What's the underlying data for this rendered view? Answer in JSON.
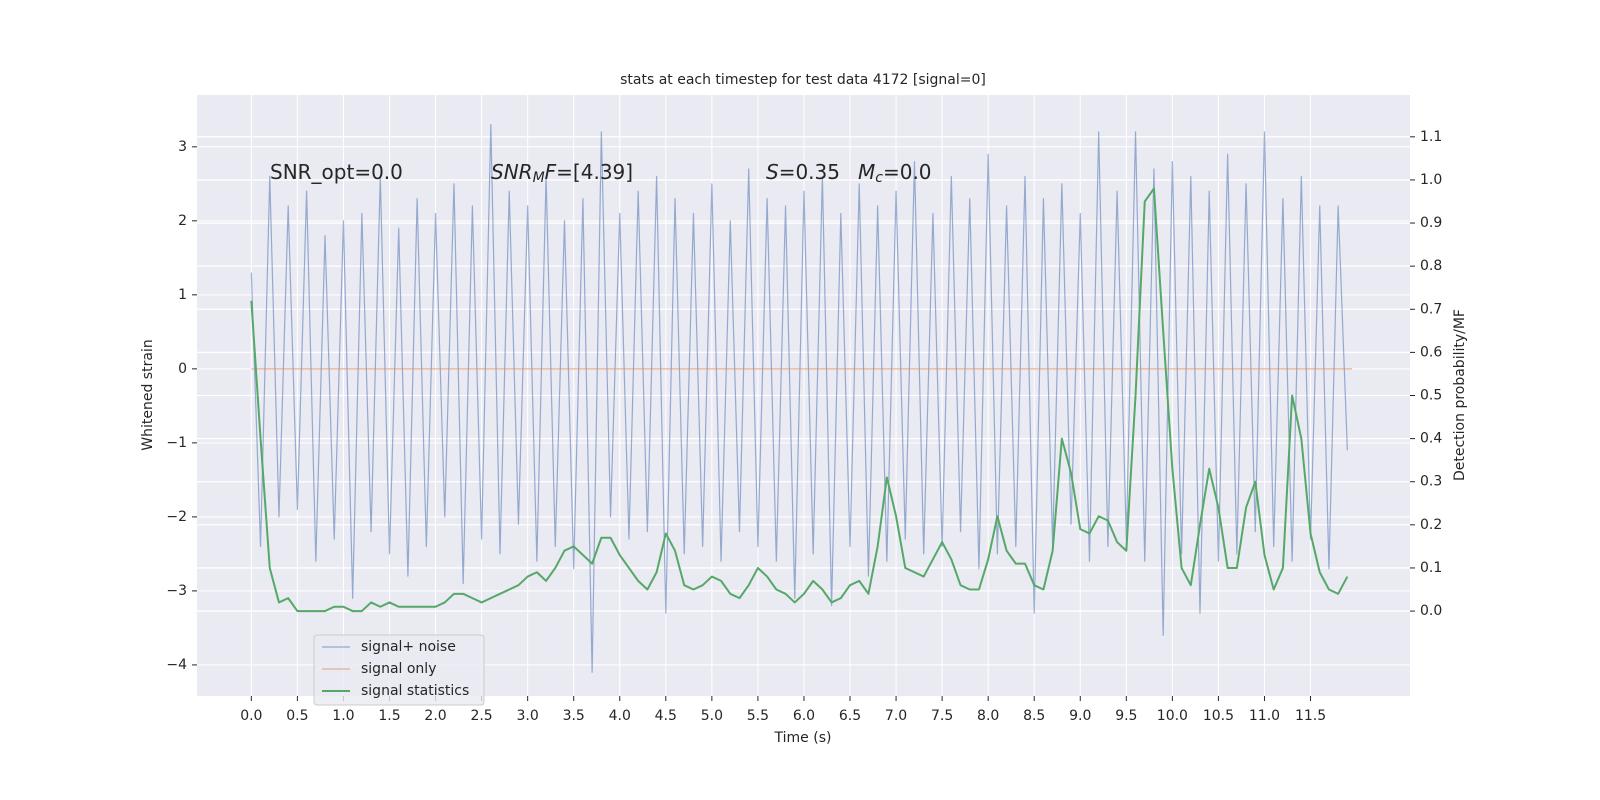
{
  "chart_data": {
    "type": "line",
    "title": "stats at each timestep for test data 4172 [signal=0]",
    "xlabel": "Time (s)",
    "ylabel": "Whitened strain",
    "y2label": "Detection probability/MF",
    "xlim": [
      -0.59,
      12.58
    ],
    "ylim": [
      -4.42,
      3.7
    ],
    "y2lim": [
      -0.197,
      1.197
    ],
    "xticks": [
      {
        "value": 0,
        "label": "0.0"
      },
      0.5,
      {
        "value": 1,
        "label": "1.0"
      },
      1.5,
      {
        "value": 2,
        "label": "2.0"
      },
      2.5,
      {
        "value": 3,
        "label": "3.0"
      },
      3.5,
      {
        "value": 4,
        "label": "4.0"
      },
      4.5,
      {
        "value": 5,
        "label": "5.0"
      },
      5.5,
      {
        "value": 6,
        "label": "6.0"
      },
      6.5,
      {
        "value": 7,
        "label": "7.0"
      },
      7.5,
      {
        "value": 8,
        "label": "8.0"
      },
      8.5,
      {
        "value": 9,
        "label": "9.0"
      },
      9.5,
      {
        "value": 10,
        "label": "10.0"
      },
      10.5,
      {
        "value": 11,
        "label": "11.0"
      },
      11.5
    ],
    "yticks": [
      {
        "value": -4,
        "label": "−4"
      },
      {
        "value": -3,
        "label": "−3"
      },
      {
        "value": -2,
        "label": "−2"
      },
      {
        "value": -1,
        "label": "−1"
      },
      0,
      1,
      2,
      3
    ],
    "y2ticks": [
      {
        "value": 0,
        "label": "0.0"
      },
      0.1,
      0.2,
      0.3,
      0.4,
      0.5,
      0.6,
      0.7,
      0.8,
      0.9,
      {
        "value": 1,
        "label": "1.0"
      },
      1.1
    ],
    "grid": true,
    "legend": "lower left",
    "annotations": [
      {
        "parts": [
          {
            "t": "SNR_opt=0.0"
          }
        ]
      },
      {
        "parts": [
          {
            "t": "SNR",
            "italic": true
          },
          {
            "t": "M",
            "italic": true,
            "sub": true
          },
          {
            "t": "F",
            "italic": true
          },
          {
            "t": "=[4.39]"
          }
        ]
      },
      {
        "parts": [
          {
            "t": "S",
            "italic": true
          },
          {
            "t": "=0.35"
          }
        ]
      },
      {
        "parts": [
          {
            "t": "M",
            "italic": true
          },
          {
            "t": "c",
            "italic": true,
            "sub": true
          },
          {
            "t": "=0.0"
          }
        ]
      }
    ],
    "x": [
      0.0,
      0.1,
      0.2,
      0.3,
      0.4,
      0.5,
      0.6,
      0.7,
      0.8,
      0.9,
      1.0,
      1.1,
      1.2,
      1.3,
      1.4,
      1.5,
      1.6,
      1.7,
      1.8,
      1.9,
      2.0,
      2.1,
      2.2,
      2.3,
      2.4,
      2.5,
      2.6,
      2.7,
      2.8,
      2.9,
      3.0,
      3.1,
      3.2,
      3.3,
      3.4,
      3.5,
      3.6,
      3.7,
      3.8,
      3.9,
      4.0,
      4.1,
      4.2,
      4.3,
      4.4,
      4.5,
      4.6,
      4.7,
      4.8,
      4.9,
      5.0,
      5.1,
      5.2,
      5.3,
      5.4,
      5.5,
      5.6,
      5.7,
      5.8,
      5.9,
      6.0,
      6.1,
      6.2,
      6.3,
      6.4,
      6.5,
      6.6,
      6.7,
      6.8,
      6.9,
      7.0,
      7.1,
      7.2,
      7.3,
      7.4,
      7.5,
      7.6,
      7.7,
      7.8,
      7.9,
      8.0,
      8.1,
      8.2,
      8.3,
      8.4,
      8.5,
      8.6,
      8.7,
      8.8,
      8.9,
      9.0,
      9.1,
      9.2,
      9.3,
      9.4,
      9.5,
      9.6,
      9.7,
      9.8,
      9.9,
      10.0,
      10.1,
      10.2,
      10.3,
      10.4,
      10.5,
      10.6,
      10.7,
      10.8,
      10.9,
      11.0,
      11.1,
      11.2,
      11.3,
      11.4,
      11.5,
      11.6,
      11.7,
      11.8,
      11.9
    ],
    "series": [
      {
        "name": "signal+ noise",
        "color": "#4c72b0",
        "values": [
          1.3,
          -2.4,
          2.6,
          -2.0,
          2.2,
          -1.9,
          2.4,
          -2.6,
          1.8,
          -2.3,
          2.0,
          -3.1,
          2.1,
          -2.2,
          2.6,
          -2.5,
          1.9,
          -2.8,
          2.3,
          -2.4,
          2.1,
          -2.0,
          2.5,
          -2.9,
          2.2,
          -2.3,
          3.3,
          -2.5,
          2.4,
          -2.1,
          2.2,
          -2.6,
          2.6,
          -2.4,
          2.0,
          -2.7,
          2.3,
          -4.1,
          3.2,
          -2.0,
          2.1,
          -2.3,
          2.4,
          -2.2,
          2.6,
          -3.3,
          2.3,
          -2.5,
          2.1,
          -2.4,
          2.5,
          -2.6,
          2.0,
          -2.2,
          2.7,
          -2.4,
          2.3,
          -2.6,
          2.2,
          -3.1,
          2.4,
          -2.5,
          2.6,
          -3.2,
          2.1,
          -2.4,
          2.5,
          -2.8,
          2.2,
          -2.6,
          2.4,
          -2.3,
          2.8,
          -2.5,
          2.1,
          -2.4,
          2.6,
          -2.2,
          2.3,
          -2.7,
          2.9,
          -2.5,
          2.2,
          -2.4,
          2.6,
          -3.3,
          2.3,
          -2.4,
          2.5,
          -2.1,
          2.1,
          -2.6,
          3.2,
          -2.4,
          2.4,
          -2.3,
          3.2,
          -2.6,
          2.7,
          -3.6,
          2.8,
          -2.5,
          2.6,
          -3.3,
          2.4,
          -2.6,
          2.9,
          -2.5,
          2.5,
          -2.2,
          3.2,
          -2.4,
          2.3,
          -2.6,
          2.6,
          -2.3,
          2.2,
          -2.7,
          2.2,
          -1.1
        ]
      },
      {
        "name": "signal only",
        "color": "#dd8452",
        "x": [
          0.0,
          11.95
        ],
        "values": [
          0,
          0
        ]
      },
      {
        "name": "signal statistics",
        "color": "#55a868",
        "axis": "y2",
        "values": [
          0.72,
          0.4,
          0.1,
          0.02,
          0.03,
          0.0,
          0.0,
          0.0,
          0.0,
          0.01,
          0.01,
          0.0,
          0.0,
          0.02,
          0.01,
          0.02,
          0.01,
          0.01,
          0.01,
          0.01,
          0.01,
          0.02,
          0.04,
          0.04,
          0.03,
          0.02,
          0.03,
          0.04,
          0.05,
          0.06,
          0.08,
          0.09,
          0.07,
          0.1,
          0.14,
          0.15,
          0.13,
          0.11,
          0.17,
          0.17,
          0.13,
          0.1,
          0.07,
          0.05,
          0.09,
          0.18,
          0.14,
          0.06,
          0.05,
          0.06,
          0.08,
          0.07,
          0.04,
          0.03,
          0.06,
          0.1,
          0.08,
          0.05,
          0.04,
          0.02,
          0.04,
          0.07,
          0.05,
          0.02,
          0.03,
          0.06,
          0.07,
          0.04,
          0.15,
          0.31,
          0.22,
          0.1,
          0.09,
          0.08,
          0.12,
          0.16,
          0.12,
          0.06,
          0.05,
          0.05,
          0.12,
          0.22,
          0.14,
          0.11,
          0.11,
          0.06,
          0.05,
          0.14,
          0.4,
          0.32,
          0.19,
          0.18,
          0.22,
          0.21,
          0.16,
          0.14,
          0.5,
          0.95,
          0.98,
          0.65,
          0.33,
          0.1,
          0.06,
          0.2,
          0.33,
          0.24,
          0.1,
          0.1,
          0.24,
          0.3,
          0.13,
          0.05,
          0.1,
          0.5,
          0.4,
          0.18,
          0.09,
          0.05,
          0.04,
          0.08
        ]
      }
    ]
  }
}
